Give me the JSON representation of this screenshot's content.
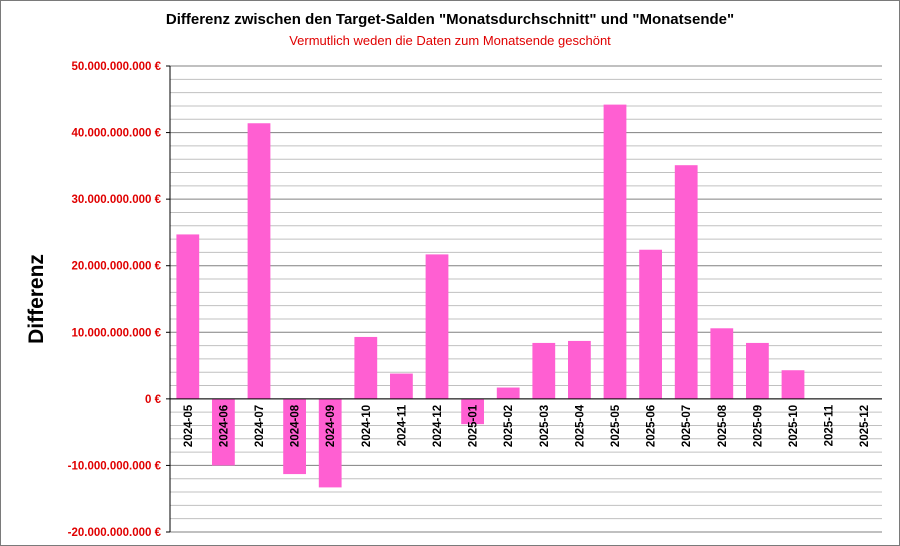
{
  "chart_data": {
    "type": "bar",
    "title": "Differenz zwischen den Target-Salden \"Monatsdurchschnitt\" und  \"Monatsende\"",
    "subtitle": "Vermutlich weden die Daten zum Monatsende geschönt",
    "ylabel": "Differenz",
    "xlabel": "",
    "ylim": [
      -20000000000,
      50000000000
    ],
    "yticks": [
      {
        "value": 50000000000,
        "label": "50.000.000.000 €"
      },
      {
        "value": 40000000000,
        "label": "40.000.000.000 €"
      },
      {
        "value": 30000000000,
        "label": "30.000.000.000 €"
      },
      {
        "value": 20000000000,
        "label": "20.000.000.000 €"
      },
      {
        "value": 10000000000,
        "label": "10.000.000.000 €"
      },
      {
        "value": 0,
        "label": "0 €"
      },
      {
        "value": -10000000000,
        "label": "-10.000.000.000 €"
      },
      {
        "value": -20000000000,
        "label": "-20.000.000.000 €"
      }
    ],
    "minor_grid_step": 2000000000,
    "grid": true,
    "legend": false,
    "categories": [
      "2024-05",
      "2024-06",
      "2024-07",
      "2024-08",
      "2024-09",
      "2024-10",
      "2024-11",
      "2024-12",
      "2025-01",
      "2025-02",
      "2025-03",
      "2025-04",
      "2025-05",
      "2025-06",
      "2025-07",
      "2025-08",
      "2025-09",
      "2025-10",
      "2025-11",
      "2025-12"
    ],
    "values": [
      24700000000,
      -10000000000,
      41400000000,
      -11300000000,
      -13300000000,
      9300000000,
      3800000000,
      21700000000,
      -3800000000,
      1700000000,
      8400000000,
      8700000000,
      44200000000,
      22400000000,
      35100000000,
      10600000000,
      8400000000,
      4300000000,
      0,
      0
    ],
    "colors": {
      "bar": "#ff5fd2",
      "major_grid": "#808080",
      "minor_grid": "#c0c0c0",
      "tick_label": "#e00000"
    }
  }
}
